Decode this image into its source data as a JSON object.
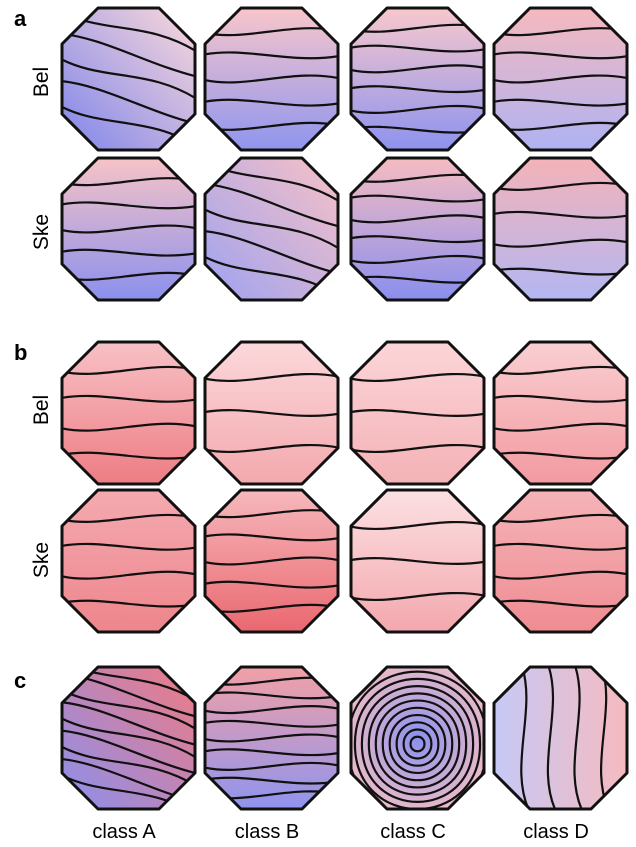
{
  "panels": [
    {
      "letter": "a",
      "rows": [
        {
          "label": "Bel",
          "maps": [
            {
              "grad": "rb",
              "from": "#fbd9db",
              "to": "#7f85ea",
              "contours": 5
            },
            {
              "grad": "vert",
              "from": "#f8c6cb",
              "to": "#8f95ee",
              "contours": 5
            },
            {
              "grad": "vert",
              "from": "#f8c8cc",
              "to": "#8d92ee",
              "contours": 6
            },
            {
              "grad": "vert",
              "from": "#f6b9be",
              "to": "#aeb2f3",
              "contours": 5
            }
          ]
        },
        {
          "label": "Ske",
          "maps": [
            {
              "grad": "vert",
              "from": "#f7c3c7",
              "to": "#8b90ed",
              "contours": 5
            },
            {
              "grad": "diag",
              "from": "#f7c1c6",
              "to": "#9ea2f0",
              "contours": 5
            },
            {
              "grad": "vert",
              "from": "#f6bcc1",
              "to": "#8a8fee",
              "contours": 6
            },
            {
              "grad": "vert",
              "from": "#f4b3b8",
              "to": "#b3b6f3",
              "contours": 4
            }
          ]
        }
      ]
    },
    {
      "letter": "b",
      "rows": [
        {
          "label": "Bel",
          "maps": [
            {
              "grad": "vert",
              "from": "#f7c1c5",
              "to": "#ee7d84",
              "contours": 4
            },
            {
              "grad": "vert",
              "from": "#fbd8da",
              "to": "#f3a9ae",
              "contours": 3
            },
            {
              "grad": "vert",
              "from": "#fbd5d8",
              "to": "#f4b2b6",
              "contours": 3
            },
            {
              "grad": "vert",
              "from": "#f9cfd2",
              "to": "#f29aa0",
              "contours": 4
            }
          ]
        },
        {
          "label": "Ske",
          "maps": [
            {
              "grad": "vert",
              "from": "#f4aab0",
              "to": "#ee858c",
              "contours": 4
            },
            {
              "grad": "vert",
              "from": "#f6b8bc",
              "to": "#ea6870",
              "contours": 5
            },
            {
              "grad": "vert",
              "from": "#fce0e2",
              "to": "#f3a8ad",
              "contours": 3
            },
            {
              "grad": "vert",
              "from": "#f5b4b8",
              "to": "#ef8c92",
              "contours": 4
            }
          ]
        }
      ]
    },
    {
      "letter": "c",
      "rows": [
        {
          "label": "",
          "maps": [
            {
              "grad": "rb",
              "from": "#f07a82",
              "to": "#8b90ee",
              "contours": 9
            },
            {
              "grad": "vert",
              "from": "#f2a0a6",
              "to": "#8f94ee",
              "contours": 9
            },
            {
              "grad": "center",
              "from": "#8a90ee",
              "to": "#f6c0c4",
              "contours": 10
            },
            {
              "grad": "lr",
              "from": "#c6c9f6",
              "to": "#f6babf",
              "contours": 4
            }
          ]
        }
      ]
    }
  ],
  "column_labels": [
    "class A",
    "class B",
    "class C",
    "class D"
  ]
}
